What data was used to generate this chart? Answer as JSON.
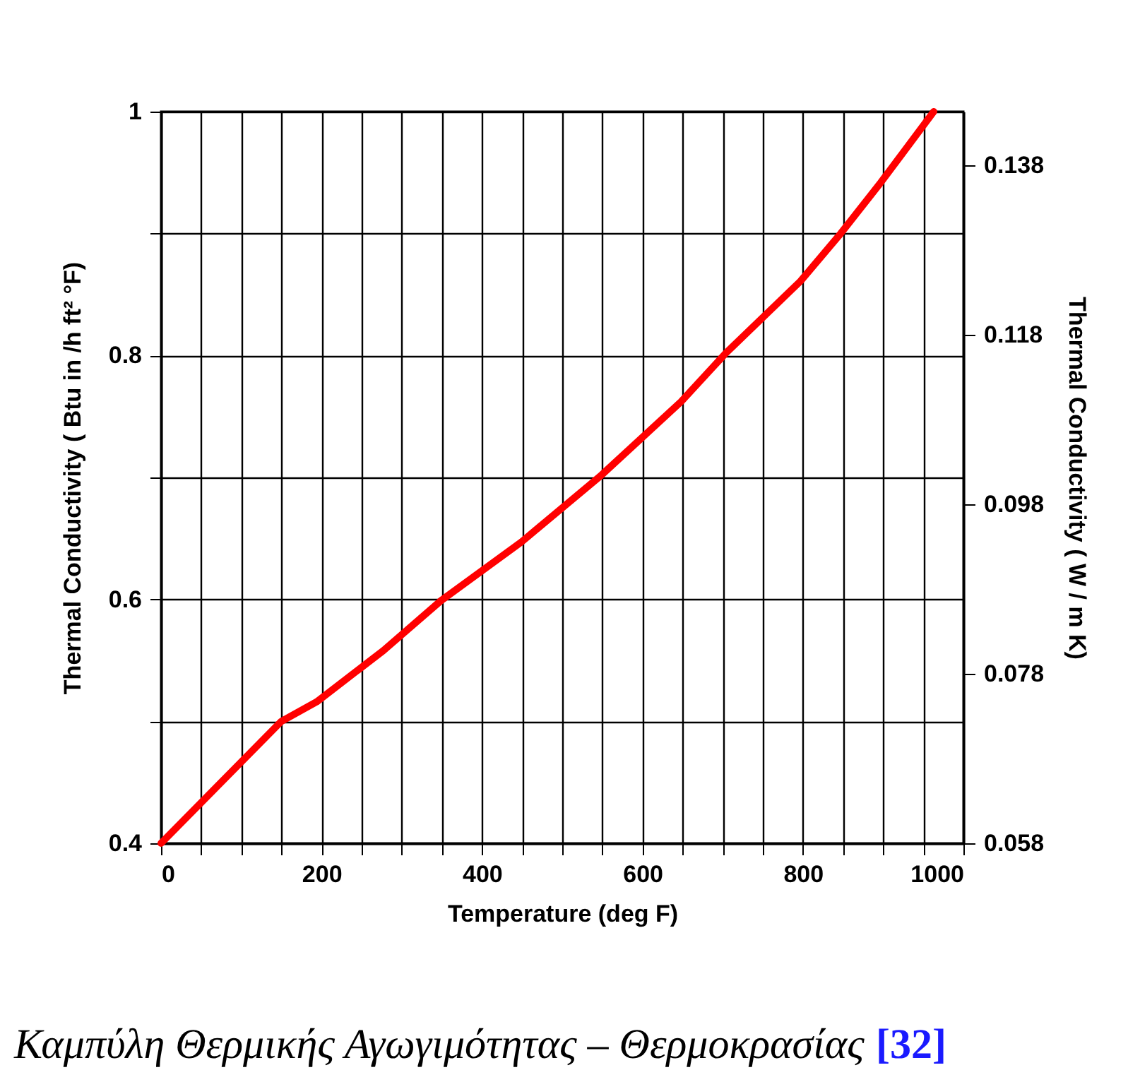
{
  "chart_data": {
    "type": "line",
    "xlabel": "Temperature (deg F)",
    "ylabel": "Thermal Conductivity ( Btu in /h ft² °F)",
    "y2label": "Thermal Conductivity ( W / m K)",
    "annotations": [
      "Καμπύλη Θερμικής Αγωγιμότητας – Θερμοκρασίας",
      "[32]"
    ],
    "series": [
      {
        "color": "#ff0000",
        "x": [
          0,
          150,
          194,
          277,
          349,
          449,
          549,
          648,
          704,
          797,
          847,
          896,
          963
        ],
        "values": [
          0.4,
          0.5,
          0.516,
          0.558,
          0.599,
          0.647,
          0.702,
          0.762,
          0.802,
          0.861,
          0.9,
          0.941,
          1.0
        ]
      }
    ],
    "xlim": [
      0,
      1000
    ],
    "xticks": [
      0,
      {
        "value": 50,
        "label": null
      },
      {
        "value": 100,
        "label": null
      },
      {
        "value": 150,
        "label": null
      },
      200,
      {
        "value": 250,
        "label": null
      },
      {
        "value": 300,
        "label": null
      },
      {
        "value": 350,
        "label": null
      },
      400,
      {
        "value": 450,
        "label": null
      },
      {
        "value": 500,
        "label": null
      },
      {
        "value": 550,
        "label": null
      },
      600,
      {
        "value": 650,
        "label": null
      },
      {
        "value": 700,
        "label": null
      },
      {
        "value": 750,
        "label": null
      },
      800,
      {
        "value": 850,
        "label": null
      },
      {
        "value": 900,
        "label": null
      },
      {
        "value": 950,
        "label": null
      },
      1000
    ],
    "ylim": [
      0.4,
      1
    ],
    "yticks": [
      0.4,
      {
        "value": 0.5,
        "label": null
      },
      0.6,
      {
        "value": 0.7,
        "label": null
      },
      0.8,
      {
        "value": 0.9,
        "label": null
      },
      1
    ],
    "y2lim": [
      0.058,
      0.1443
    ],
    "y2ticks": [
      0.058,
      0.078,
      0.098,
      0.118,
      0.138
    ],
    "grid": true,
    "marker": "none",
    "line_style": "solid"
  }
}
